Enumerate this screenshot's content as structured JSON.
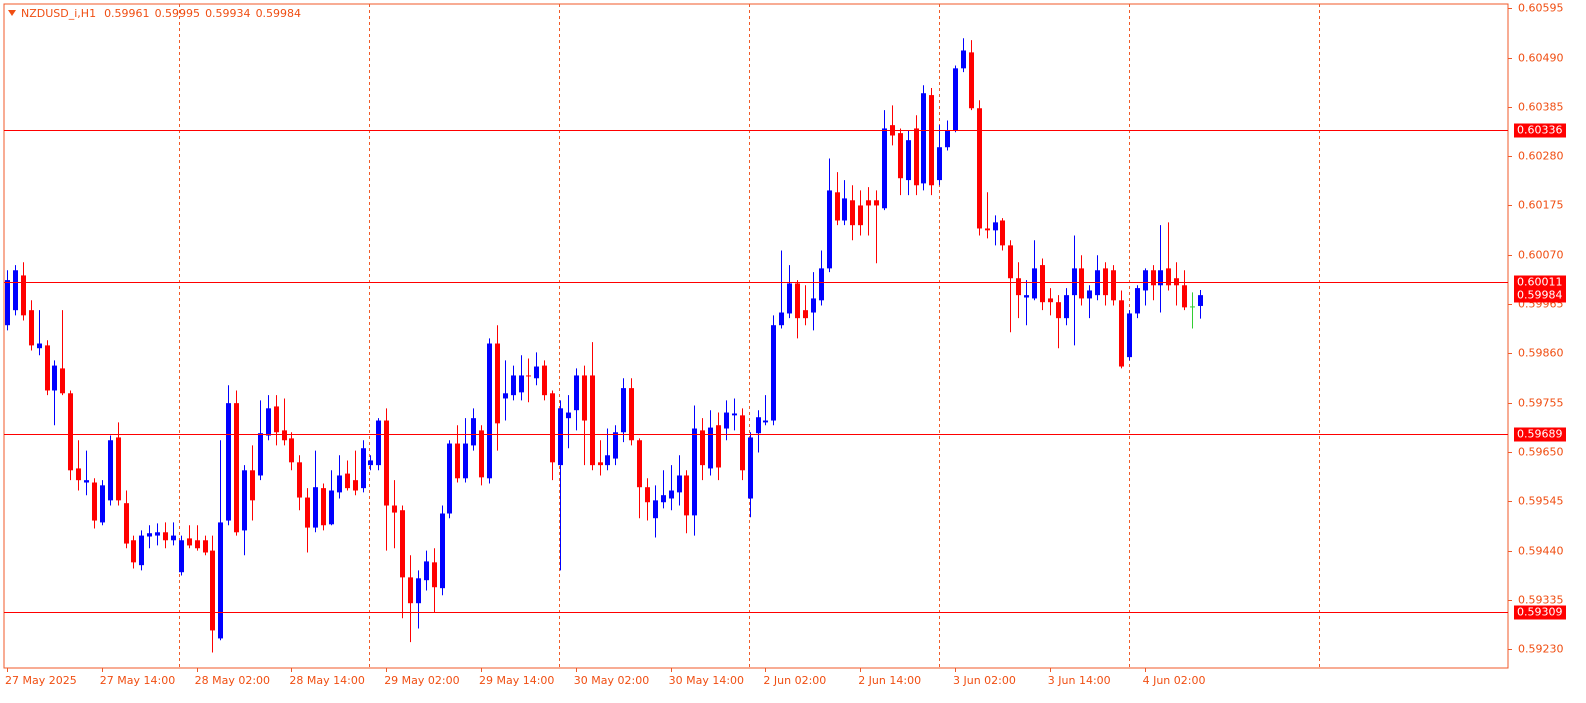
{
  "chart_data": {
    "type": "candlestick",
    "title": "NZDUSD_i,H1",
    "categories": [
      "27 May 2025",
      null,
      null,
      null,
      null,
      null,
      null,
      null,
      null,
      null,
      null,
      null,
      "27 May 14:00",
      null,
      null,
      null,
      null,
      null,
      null,
      null,
      null,
      null,
      null,
      null,
      "28 May 02:00",
      null,
      null,
      null,
      null,
      null,
      null,
      null,
      null,
      null,
      null,
      null,
      "28 May 14:00",
      null,
      null,
      null,
      null,
      null,
      null,
      null,
      null,
      null,
      null,
      null,
      "29 May 02:00",
      null,
      null,
      null,
      null,
      null,
      null,
      null,
      null,
      null,
      null,
      null,
      "29 May 14:00",
      null,
      null,
      null,
      null,
      null,
      null,
      null,
      null,
      null,
      null,
      null,
      "30 May 02:00",
      null,
      null,
      null,
      null,
      null,
      null,
      null,
      null,
      null,
      null,
      null,
      "30 May 14:00",
      null,
      null,
      null,
      null,
      null,
      null,
      null,
      null,
      null,
      null,
      null,
      "2 Jun 02:00",
      null,
      null,
      null,
      null,
      null,
      null,
      null,
      null,
      null,
      null,
      null,
      "2 Jun 14:00",
      null,
      null,
      null,
      null,
      null,
      null,
      null,
      null,
      null,
      null,
      null,
      "3 Jun 02:00",
      null,
      null,
      null,
      null,
      null,
      null,
      null,
      null,
      null,
      null,
      null,
      "3 Jun 14:00",
      null,
      null,
      null,
      null,
      null,
      null,
      null,
      null,
      null,
      null,
      null,
      "4 Jun 02:00",
      null,
      null,
      null,
      null,
      null,
      null,
      null
    ],
    "open": [
      0.5992,
      0.59952,
      0.60026,
      0.59952,
      0.59871,
      0.59877,
      0.59781,
      0.59828,
      0.59775,
      0.59615,
      0.59585,
      0.59585,
      0.595,
      0.59547,
      0.59681,
      0.59541,
      0.59462,
      0.59409,
      0.5947,
      0.59472,
      0.59479,
      0.59462,
      0.59394,
      0.59466,
      0.59462,
      0.59462,
      0.5944,
      0.59253,
      0.59504,
      0.59754,
      0.59483,
      0.59611,
      0.596,
      0.59685,
      0.59747,
      0.59696,
      0.59679,
      0.59628,
      0.59553,
      0.59489,
      0.59573,
      0.59496,
      0.59564,
      0.59604,
      0.5959,
      0.59573,
      0.59622,
      0.59622,
      0.59717,
      0.59536,
      0.59526,
      0.59383,
      0.59328,
      0.59377,
      0.59415,
      0.5936,
      0.59519,
      0.59668,
      0.59594,
      0.59664,
      0.59696,
      0.59594,
      0.59881,
      0.59764,
      0.59771,
      0.59777,
      0.59813,
      0.59807,
      0.59834,
      0.59775,
      0.59622,
      0.59722,
      0.59739,
      0.59813,
      0.59813,
      0.59628,
      0.59622,
      0.59636,
      0.59692,
      0.59786,
      0.59675,
      0.59575,
      0.59509,
      0.59543,
      0.59551,
      0.59564,
      0.596,
      0.59515,
      0.59696,
      0.59615,
      0.59707,
      0.597,
      0.59728,
      0.59728,
      0.59551,
      0.5969,
      0.59713,
      0.59717,
      0.5992,
      0.59945,
      0.60009,
      0.59952,
      0.59947,
      0.59973,
      0.60041,
      0.60203,
      0.60143,
      0.60186,
      0.60175,
      0.60186,
      0.60186,
      0.60169,
      0.60346,
      0.60329,
      0.60229,
      0.60339,
      0.60222,
      0.6041,
      0.60229,
      0.60299,
      0.60335,
      0.60467,
      0.60501,
      0.60382,
      0.60126,
      0.60122,
      0.60143,
      0.6009,
      0.6002,
      0.59979,
      0.59977,
      0.60048,
      0.59977,
      0.59969,
      0.59935,
      0.59984,
      0.60041,
      0.59977,
      0.59984,
      0.60041,
      0.60037,
      0.59973,
      0.59852,
      0.59945,
      0.59994,
      0.60037,
      0.60005,
      0.60041,
      0.6002,
      0.60005,
      0.5996,
      0.59961
    ],
    "high": [
      0.60037,
      0.60048,
      0.60054,
      0.59973,
      0.59952,
      0.59888,
      0.59845,
      0.59952,
      0.59781,
      0.59675,
      0.59653,
      0.59594,
      0.5959,
      0.59685,
      0.59713,
      0.59568,
      0.59472,
      0.59483,
      0.59494,
      0.59498,
      0.595,
      0.595,
      0.59472,
      0.59494,
      0.59494,
      0.59472,
      0.59472,
      0.59675,
      0.59792,
      0.59781,
      0.59622,
      0.59664,
      0.5976,
      0.59771,
      0.59771,
      0.59764,
      0.59692,
      0.59643,
      0.59573,
      0.59653,
      0.59583,
      0.59611,
      0.59643,
      0.59632,
      0.59653,
      0.59675,
      0.59643,
      0.59722,
      0.59743,
      0.5959,
      0.59536,
      0.5943,
      0.59398,
      0.5944,
      0.59445,
      0.59536,
      0.59675,
      0.59707,
      0.59722,
      0.59743,
      0.59707,
      0.59892,
      0.5992,
      0.59845,
      0.59834,
      0.59856,
      0.59849,
      0.59862,
      0.59845,
      0.59781,
      0.5976,
      0.59771,
      0.59828,
      0.59834,
      0.59884,
      0.59675,
      0.597,
      0.59707,
      0.59807,
      0.59807,
      0.59679,
      0.59594,
      0.59579,
      0.59611,
      0.59622,
      0.59643,
      0.59611,
      0.59749,
      0.59722,
      0.59739,
      0.59734,
      0.5976,
      0.59764,
      0.59743,
      0.59692,
      0.59739,
      0.59771,
      0.59941,
      0.60079,
      0.60048,
      0.60016,
      0.60005,
      0.60033,
      0.60079,
      0.60275,
      0.60246,
      0.60229,
      0.60218,
      0.60207,
      0.60214,
      0.60207,
      0.60378,
      0.60388,
      0.60339,
      0.60335,
      0.60367,
      0.60431,
      0.60425,
      0.60346,
      0.60356,
      0.60473,
      0.60531,
      0.60527,
      0.60399,
      0.60203,
      0.60154,
      0.60148,
      0.60101,
      0.60054,
      0.60016,
      0.60101,
      0.60062,
      0.59999,
      0.59984,
      0.59999,
      0.60111,
      0.60069,
      0.60005,
      0.60069,
      0.60054,
      0.60048,
      0.59994,
      0.59952,
      0.60005,
      0.60041,
      0.60048,
      0.60133,
      0.60139,
      0.60054,
      0.60037,
      0.5999,
      0.59995
    ],
    "low": [
      0.59909,
      0.59941,
      0.5993,
      0.59866,
      0.59856,
      0.59771,
      0.59707,
      0.59771,
      0.5959,
      0.59568,
      0.59558,
      0.59487,
      0.59494,
      0.59536,
      0.59536,
      0.59445,
      0.59402,
      0.59398,
      0.59445,
      0.59451,
      0.59445,
      0.59451,
      0.59387,
      0.59445,
      0.5944,
      0.5943,
      0.59223,
      0.59249,
      0.59494,
      0.59472,
      0.5943,
      0.59504,
      0.5959,
      0.59675,
      0.59664,
      0.59664,
      0.59611,
      0.59526,
      0.59436,
      0.59479,
      0.59483,
      0.59494,
      0.59551,
      0.59568,
      0.59558,
      0.59564,
      0.59611,
      0.59611,
      0.5944,
      0.59445,
      0.59296,
      0.59245,
      0.59274,
      0.59355,
      0.59308,
      0.59345,
      0.59509,
      0.59585,
      0.59585,
      0.59653,
      0.59579,
      0.59583,
      0.59653,
      0.59717,
      0.5976,
      0.5976,
      0.59756,
      0.59792,
      0.5976,
      0.5959,
      0.59398,
      0.59658,
      0.59696,
      0.59622,
      0.59611,
      0.596,
      0.59611,
      0.59622,
      0.59671,
      0.59664,
      0.59509,
      0.59504,
      0.59468,
      0.5953,
      0.59526,
      0.59536,
      0.59477,
      0.59472,
      0.5959,
      0.596,
      0.5959,
      0.59675,
      0.59696,
      0.5959,
      0.59511,
      0.59649,
      0.59707,
      0.59707,
      0.59913,
      0.59935,
      0.59892,
      0.5992,
      0.59909,
      0.59962,
      0.60033,
      0.60133,
      0.60133,
      0.60101,
      0.60111,
      0.60111,
      0.60052,
      0.60165,
      0.60303,
      0.60197,
      0.60197,
      0.60197,
      0.60207,
      0.60197,
      0.60218,
      0.60292,
      0.60331,
      0.60459,
      0.60378,
      0.60111,
      0.60105,
      0.6009,
      0.60079,
      0.59905,
      0.59935,
      0.5992,
      0.59973,
      0.59952,
      0.59941,
      0.59871,
      0.5992,
      0.59877,
      0.59962,
      0.59935,
      0.59973,
      0.59962,
      0.59962,
      0.59828,
      0.59845,
      0.59935,
      0.59962,
      0.59973,
      0.59947,
      0.59994,
      0.59962,
      0.59952,
      0.59913,
      0.59934
    ],
    "close": [
      0.60016,
      0.60037,
      0.59941,
      0.59877,
      0.59881,
      0.59781,
      0.59834,
      0.59775,
      0.59611,
      0.5959,
      0.5959,
      0.59504,
      0.59579,
      0.59675,
      0.59547,
      0.59455,
      0.59415,
      0.59472,
      0.59477,
      0.59479,
      0.59462,
      0.59472,
      0.59462,
      0.59451,
      0.59445,
      0.59436,
      0.5927,
      0.595,
      0.59754,
      0.59479,
      0.59611,
      0.59547,
      0.5969,
      0.59743,
      0.59692,
      0.59675,
      0.59628,
      0.59553,
      0.59489,
      0.59575,
      0.59494,
      0.59568,
      0.596,
      0.59573,
      0.59568,
      0.59658,
      0.59632,
      0.59717,
      0.59536,
      0.59521,
      0.59383,
      0.59328,
      0.59381,
      0.59417,
      0.59362,
      0.59519,
      0.59668,
      0.59594,
      0.59668,
      0.59722,
      0.59596,
      0.59881,
      0.59711,
      0.59775,
      0.59813,
      0.59813,
      0.59811,
      0.59832,
      0.59771,
      0.59628,
      0.59743,
      0.59734,
      0.59813,
      0.59717,
      0.59622,
      0.59622,
      0.59643,
      0.59692,
      0.59786,
      0.59675,
      0.59575,
      0.59543,
      0.59547,
      0.59558,
      0.59568,
      0.596,
      0.59515,
      0.597,
      0.59622,
      0.59702,
      0.59617,
      0.59734,
      0.59732,
      0.59611,
      0.59681,
      0.59724,
      0.59717,
      0.5992,
      0.59947,
      0.60009,
      0.59935,
      0.59935,
      0.59977,
      0.60041,
      0.60207,
      0.60143,
      0.6019,
      0.60133,
      0.60133,
      0.60175,
      0.60175,
      0.60339,
      0.60324,
      0.60233,
      0.60314,
      0.60218,
      0.60414,
      0.60218,
      0.60299,
      0.60335,
      0.60467,
      0.60505,
      0.60382,
      0.60126,
      0.60122,
      0.60139,
      0.6009,
      0.6002,
      0.59984,
      0.59984,
      0.60041,
      0.59969,
      0.59969,
      0.59935,
      0.59984,
      0.60041,
      0.59977,
      0.59994,
      0.60037,
      0.59984,
      0.59973,
      0.59832,
      0.59945,
      0.59999,
      0.60037,
      0.60005,
      0.60037,
      0.60005,
      0.60005,
      0.59958,
      0.5996,
      0.59984
    ],
    "bull_color": "#0000ff",
    "bear_color": "#ff0000",
    "doji_color": "#32cd32",
    "ylim": [
      0.5919,
      0.60604
    ],
    "yticks": [
      0.60595,
      {
        "value": 0.6049,
        "label": "0.60490"
      },
      0.60385,
      {
        "value": 0.6028,
        "label": "0.60280"
      },
      0.60175,
      {
        "value": 0.6007,
        "label": "0.60070"
      },
      0.59965,
      {
        "value": 0.5986,
        "label": "0.59860"
      },
      0.59755,
      {
        "value": 0.5965,
        "label": "0.59650"
      },
      0.59545,
      {
        "value": 0.5944,
        "label": "0.59440"
      },
      0.59335,
      {
        "value": 0.5923,
        "label": "0.59230"
      }
    ],
    "levels": [
      0.60336,
      0.60011,
      0.59689,
      0.59309
    ],
    "level_color": "#ff0000"
  }
}
